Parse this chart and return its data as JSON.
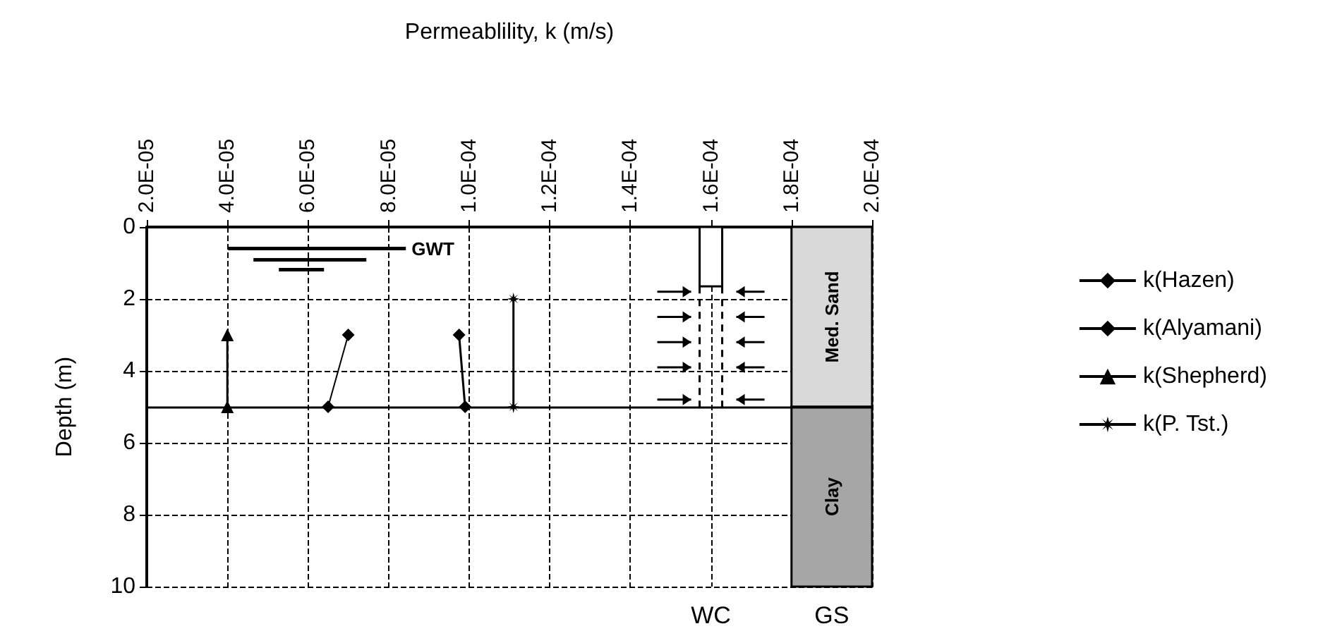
{
  "chart_data": {
    "type": "line",
    "xlabel": "Permeablility, k (m/s)",
    "ylabel": "Depth (m)",
    "xlim": [
      2e-05,
      0.0002
    ],
    "xticks": [
      {
        "value": 2e-05,
        "label": "2.0E-05"
      },
      {
        "value": 4e-05,
        "label": "4.0E-05"
      },
      {
        "value": 6e-05,
        "label": "6.0E-05"
      },
      {
        "value": 8e-05,
        "label": "8.0E-05"
      },
      {
        "value": 0.0001,
        "label": "1.0E-04"
      },
      {
        "value": 0.00012,
        "label": "1.2E-04"
      },
      {
        "value": 0.00014,
        "label": "1.4E-04"
      },
      {
        "value": 0.00016,
        "label": "1.6E-04"
      },
      {
        "value": 0.00018,
        "label": "1.8E-04"
      },
      {
        "value": 0.0002,
        "label": "2.0E-04"
      }
    ],
    "ylim": [
      10,
      0
    ],
    "yticks": [
      0,
      2,
      4,
      6,
      8,
      10
    ],
    "series": [
      {
        "name": "k(Hazen)",
        "color": "#000000",
        "marker": "diamond",
        "x": [
          9.75e-05,
          9.9e-05
        ],
        "values": [
          3,
          5
        ]
      },
      {
        "name": "k(Alyamani)",
        "color": "#000000",
        "marker": "diamond",
        "x": [
          7e-05,
          6.5e-05
        ],
        "values": [
          3,
          5
        ]
      },
      {
        "name": "k(Shepherd)",
        "color": "#000000",
        "marker": "triangle",
        "x": [
          4e-05,
          4e-05
        ],
        "values": [
          3,
          5
        ]
      },
      {
        "name": "k(P. Tst.)",
        "color": "#000000",
        "marker": "star",
        "x": [
          0.000111,
          0.000111
        ],
        "values": [
          2,
          5
        ]
      }
    ],
    "ref_lines": [
      {
        "axis": "y",
        "value": 5,
        "color": "#000000"
      }
    ],
    "bands": [
      {
        "axis": "y",
        "from": 0,
        "to": 5,
        "label": "Med. Sand",
        "color": "#d9d9d9"
      },
      {
        "axis": "y",
        "from": 5,
        "to": 10,
        "label": "Clay",
        "color": "#a6a6a6"
      }
    ],
    "annotations": [
      "GWT",
      "WC",
      "GS"
    ],
    "grid": true,
    "line_style": "solid",
    "legend": "right"
  }
}
